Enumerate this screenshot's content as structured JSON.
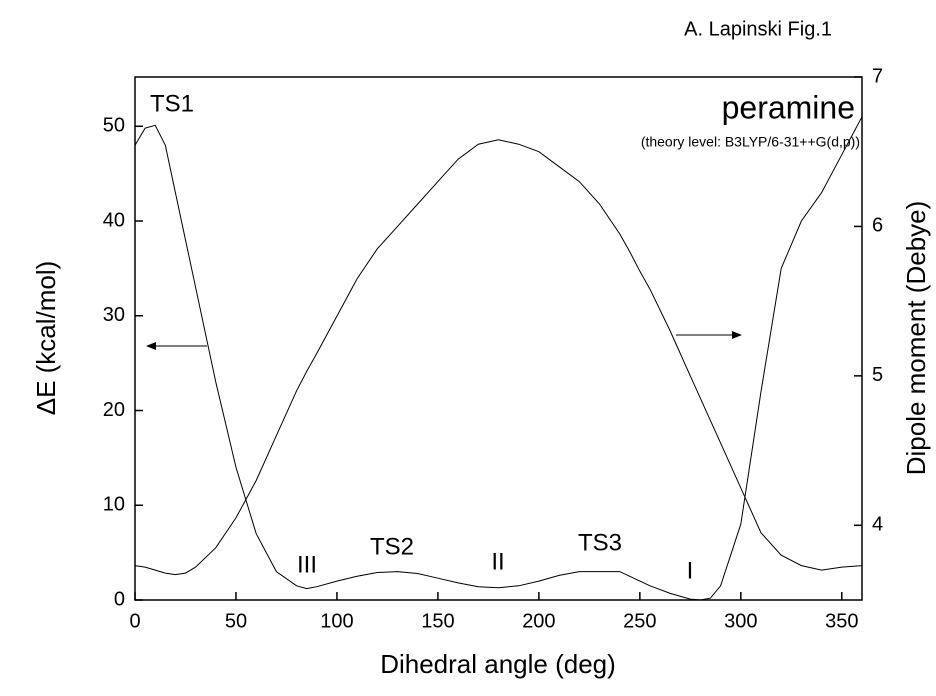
{
  "chart_data": {
    "type": "line",
    "caption": "A. Lapinski Fig.1",
    "title": "peramine",
    "subtitle": "(theory level: B3LYP/6-31++G(d,p))",
    "xlabel": "Dihedral angle (deg)",
    "ylabel": "ΔE (kcal/mol)",
    "y2label": "Dipole moment (Debye)",
    "x": [
      0,
      5,
      10,
      15,
      20,
      25,
      30,
      40,
      50,
      60,
      70,
      80,
      85,
      90,
      100,
      110,
      120,
      130,
      140,
      150,
      160,
      170,
      180,
      190,
      200,
      210,
      220,
      230,
      240,
      245,
      250,
      255,
      265,
      275,
      280,
      285,
      290,
      300,
      310,
      320,
      330,
      340,
      350,
      360
    ],
    "series": [
      {
        "name": "ΔE",
        "color": "#000000",
        "axis": "y",
        "values": [
          48,
          49.8,
          50.1,
          48,
          43,
          38,
          33,
          23,
          14,
          7,
          3,
          1.5,
          1.2,
          1.4,
          2,
          2.5,
          2.9,
          3,
          2.8,
          2.3,
          1.8,
          1.4,
          1.3,
          1.5,
          2,
          2.6,
          3,
          3,
          3,
          2.5,
          2,
          1.5,
          0.7,
          0.1,
          0,
          0.2,
          1.5,
          8,
          22,
          35,
          40,
          43,
          47,
          51
        ]
      },
      {
        "name": "Dipole moment",
        "color": "#000000",
        "axis": "y2",
        "values": [
          3.73,
          3.72,
          3.7,
          3.68,
          3.67,
          3.68,
          3.72,
          3.85,
          4.05,
          4.3,
          4.6,
          4.9,
          5.03,
          5.15,
          5.4,
          5.65,
          5.85,
          6.0,
          6.15,
          6.3,
          6.45,
          6.55,
          6.58,
          6.55,
          6.5,
          6.4,
          6.3,
          6.15,
          5.95,
          5.83,
          5.7,
          5.58,
          5.3,
          5.0,
          4.85,
          4.7,
          4.55,
          4.25,
          3.95,
          3.8,
          3.73,
          3.7,
          3.72,
          3.73
        ]
      }
    ],
    "annotations": [
      "TS1",
      "TS2",
      "TS3",
      "I",
      "II",
      "III"
    ],
    "xlim": [
      0,
      360
    ],
    "xticks": [
      0,
      50,
      100,
      150,
      200,
      250,
      300,
      350
    ],
    "ylim": [
      0,
      55.2
    ],
    "yticks": [
      0,
      10,
      20,
      30,
      40,
      50
    ],
    "y2lim": [
      3.5,
      7
    ],
    "y2ticks": [
      4,
      5,
      6,
      7
    ],
    "grid": false
  }
}
